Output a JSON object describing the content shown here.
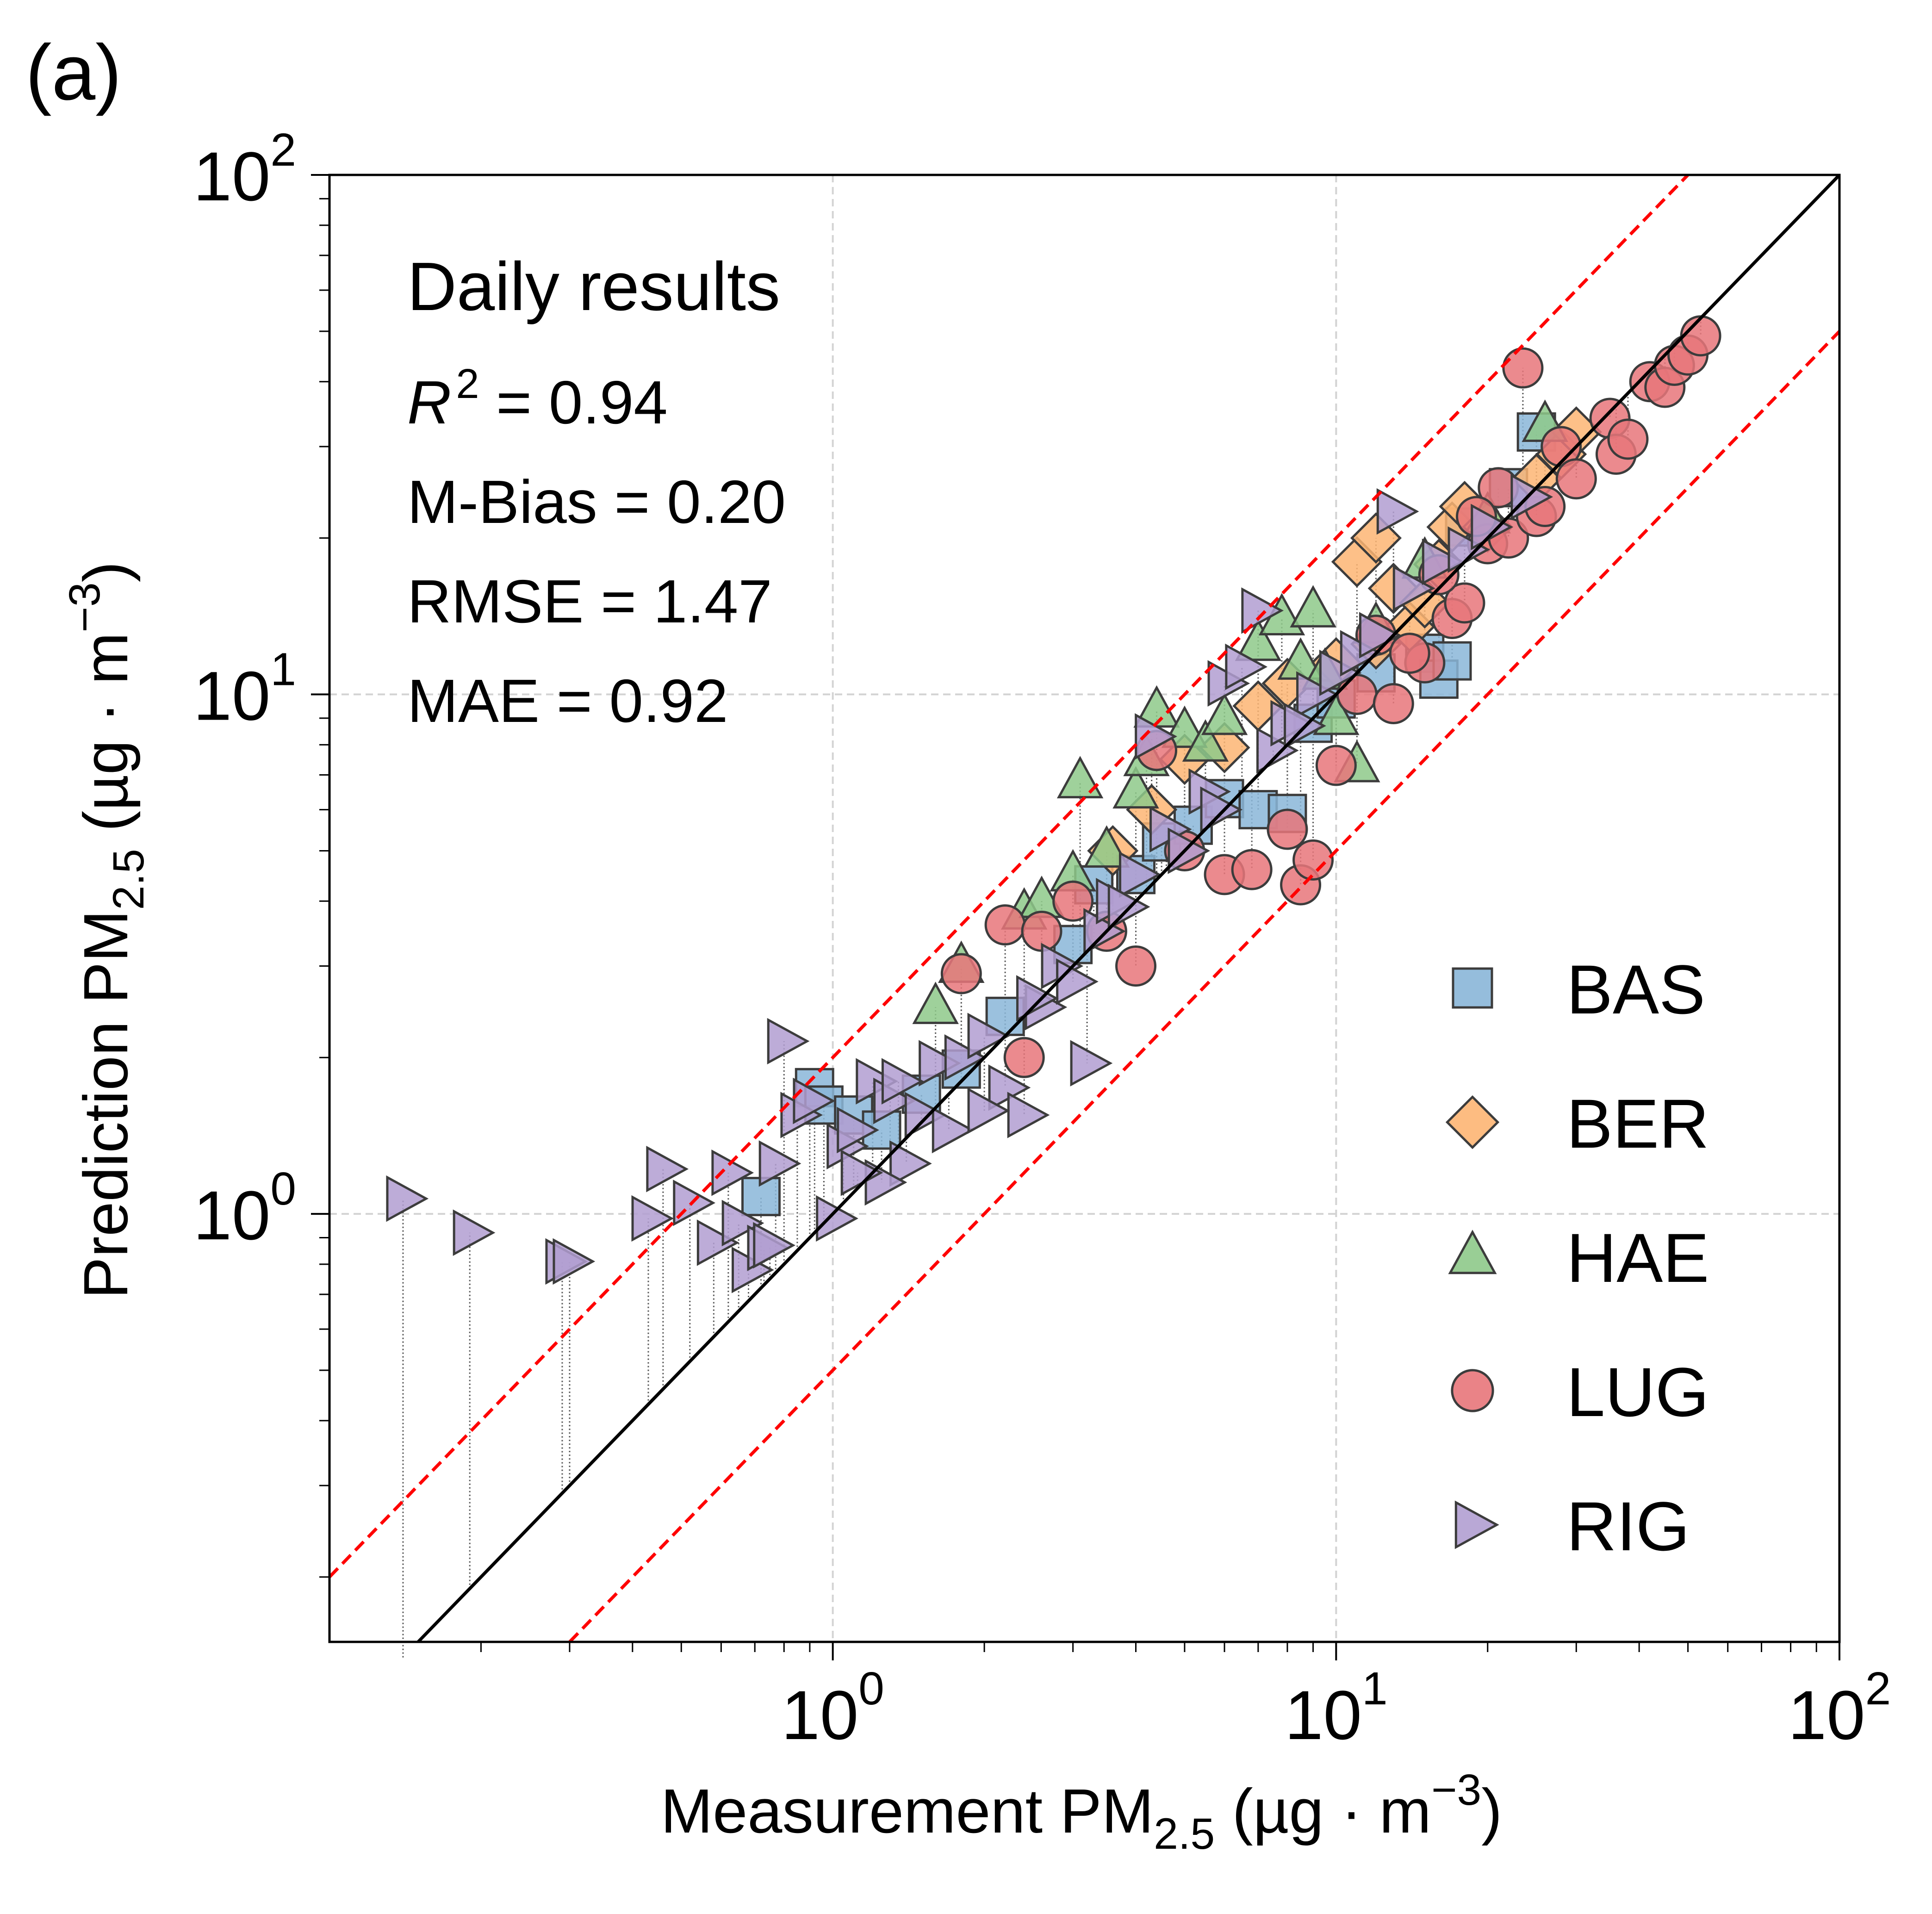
{
  "chart_data": {
    "type": "scatter",
    "panel_label": "(a)",
    "xlabel": "Measurement PM2.5 (µg · m−3)",
    "ylabel": "Prediction PM2.5 (µg · m−3)",
    "xlabel_parts": {
      "pre": "Measurement PM",
      "sub": "2.5",
      "mid": " (µg · m",
      "sup": "−3",
      "post": ")"
    },
    "ylabel_parts": {
      "pre": "Prediction PM",
      "sub": "2.5",
      "mid": " (µg · m",
      "sup": "−3",
      "post": ")"
    },
    "x_scale": "log",
    "y_scale": "log",
    "xlim": [
      0.1,
      100
    ],
    "ylim": [
      0.15,
      100
    ],
    "x_ticks": [
      {
        "value": 1,
        "base": "10",
        "exp": "0"
      },
      {
        "value": 10,
        "base": "10",
        "exp": "1"
      },
      {
        "value": 100,
        "base": "10",
        "exp": "2"
      }
    ],
    "y_ticks": [
      {
        "value": 1,
        "base": "10",
        "exp": "0"
      },
      {
        "value": 10,
        "base": "10",
        "exp": "1"
      },
      {
        "value": 100,
        "base": "10",
        "exp": "2"
      }
    ],
    "grid": true,
    "legend_position": "lower-right",
    "annotations": {
      "title": "Daily results",
      "r2_label": "R",
      "r2_sup": "2",
      "r2_value": " = 0.94",
      "mbias": "M-Bias = 0.20",
      "rmse": "RMSE = 1.47",
      "mae": "MAE = 0.92"
    },
    "reference_lines": [
      {
        "kind": "identity",
        "factor": 1,
        "color": "#000000",
        "style": "solid"
      },
      {
        "kind": "upper",
        "factor": 2,
        "color": "#ff0000",
        "style": "dashed"
      },
      {
        "kind": "lower",
        "factor": 0.5,
        "color": "#ff0000",
        "style": "dashed"
      }
    ],
    "series": [
      {
        "name": "BAS",
        "marker": "square",
        "color": "#89b6d8",
        "points": [
          [
            0.92,
            1.75
          ],
          [
            0.96,
            1.62
          ],
          [
            1.1,
            1.55
          ],
          [
            1.25,
            1.45
          ],
          [
            1.5,
            1.7
          ],
          [
            1.8,
            1.9
          ],
          [
            2.2,
            2.4
          ],
          [
            3.0,
            3.3
          ],
          [
            3.3,
            4.3
          ],
          [
            4.0,
            4.5
          ],
          [
            4.5,
            5.2
          ],
          [
            5.2,
            5.6
          ],
          [
            6.0,
            6.3
          ],
          [
            7.0,
            6.0
          ],
          [
            8.0,
            5.9
          ],
          [
            9.0,
            8.8
          ],
          [
            10.0,
            9.8
          ],
          [
            12.0,
            11.0
          ],
          [
            15.0,
            12.0
          ],
          [
            16.0,
            10.7
          ],
          [
            17.0,
            11.6
          ],
          [
            18.0,
            21.0
          ],
          [
            22.0,
            25.0
          ],
          [
            25.0,
            32.0
          ],
          [
            0.72,
            1.08
          ]
        ]
      },
      {
        "name": "BER",
        "marker": "diamond",
        "color": "#fdb573",
        "points": [
          [
            5.0,
            7.5
          ],
          [
            6.0,
            7.9
          ],
          [
            7.0,
            9.5
          ],
          [
            8.0,
            10.5
          ],
          [
            10.0,
            11.5
          ],
          [
            12.0,
            12.5
          ],
          [
            13.0,
            16.0
          ],
          [
            14.0,
            13.5
          ],
          [
            15.0,
            15.0
          ],
          [
            16.0,
            17.8
          ],
          [
            17.0,
            21.0
          ],
          [
            18.0,
            23.0
          ],
          [
            20.0,
            21.0
          ],
          [
            25.0,
            26.0
          ],
          [
            28.0,
            29.0
          ],
          [
            30.0,
            32.0
          ],
          [
            11.0,
            18.0
          ],
          [
            12.0,
            20.0
          ],
          [
            4.3,
            6.0
          ],
          [
            3.6,
            5.0
          ]
        ]
      },
      {
        "name": "HAE",
        "marker": "triangle",
        "color": "#8ec98a",
        "points": [
          [
            1.6,
            2.5
          ],
          [
            1.8,
            3.0
          ],
          [
            2.4,
            3.8
          ],
          [
            2.6,
            4.0
          ],
          [
            3.0,
            4.5
          ],
          [
            3.1,
            6.8
          ],
          [
            3.5,
            5.0
          ],
          [
            4.0,
            6.5
          ],
          [
            4.2,
            7.5
          ],
          [
            4.4,
            9.3
          ],
          [
            5.0,
            8.5
          ],
          [
            5.5,
            8.0
          ],
          [
            6.0,
            9.0
          ],
          [
            7.0,
            12.5
          ],
          [
            7.8,
            14.0
          ],
          [
            8.5,
            11.5
          ],
          [
            9.0,
            14.5
          ],
          [
            9.5,
            11.0
          ],
          [
            10.0,
            9.0
          ],
          [
            11.0,
            7.3
          ],
          [
            12.0,
            13.5
          ],
          [
            15.0,
            18.0
          ],
          [
            20.0,
            22.0
          ],
          [
            26.0,
            33.0
          ]
        ]
      },
      {
        "name": "LUG",
        "marker": "circle",
        "color": "#e8767a",
        "points": [
          [
            1.8,
            2.9
          ],
          [
            2.2,
            3.6
          ],
          [
            2.4,
            2.0
          ],
          [
            2.6,
            3.5
          ],
          [
            3.0,
            4.0
          ],
          [
            3.5,
            3.5
          ],
          [
            4.0,
            3.0
          ],
          [
            4.4,
            7.8
          ],
          [
            5.0,
            5.0
          ],
          [
            6.0,
            4.5
          ],
          [
            6.8,
            4.6
          ],
          [
            8.0,
            5.5
          ],
          [
            8.5,
            4.3
          ],
          [
            9.0,
            4.8
          ],
          [
            10.0,
            7.3
          ],
          [
            11.0,
            10.0
          ],
          [
            12.0,
            13.0
          ],
          [
            13.0,
            9.6
          ],
          [
            15.0,
            11.5
          ],
          [
            17.0,
            14.0
          ],
          [
            18.0,
            15.0
          ],
          [
            20.0,
            19.5
          ],
          [
            21.0,
            25.0
          ],
          [
            22.0,
            20.0
          ],
          [
            23.5,
            42.5
          ],
          [
            25.0,
            22.0
          ],
          [
            26.0,
            23.0
          ],
          [
            28.0,
            30.0
          ],
          [
            30.0,
            26.0
          ],
          [
            35.0,
            34.0
          ],
          [
            36.0,
            29.0
          ],
          [
            38.0,
            31.0
          ],
          [
            42.0,
            40.0
          ],
          [
            45.0,
            39.0
          ],
          [
            47.0,
            43.0
          ],
          [
            50.0,
            45.0
          ],
          [
            53.0,
            49.0
          ],
          [
            16.0,
            17.0
          ],
          [
            14.0,
            12.0
          ],
          [
            19.0,
            22.0
          ]
        ]
      },
      {
        "name": "RIG",
        "marker": "triangle-right",
        "color": "#b19ed1",
        "points": [
          [
            0.14,
            1.07
          ],
          [
            0.19,
            0.92
          ],
          [
            0.29,
            0.81
          ],
          [
            0.3,
            0.81
          ],
          [
            0.43,
            0.98
          ],
          [
            0.46,
            1.22
          ],
          [
            0.52,
            1.05
          ],
          [
            0.58,
            0.88
          ],
          [
            0.62,
            1.2
          ],
          [
            0.65,
            0.96
          ],
          [
            0.68,
            0.78
          ],
          [
            0.73,
            0.86
          ],
          [
            0.77,
            1.25
          ],
          [
            0.8,
            2.15
          ],
          [
            0.85,
            1.55
          ],
          [
            0.9,
            1.65
          ],
          [
            1.0,
            0.98
          ],
          [
            1.05,
            1.35
          ],
          [
            1.1,
            1.45
          ],
          [
            1.2,
            1.8
          ],
          [
            1.3,
            1.65
          ],
          [
            1.4,
            1.25
          ],
          [
            1.5,
            1.55
          ],
          [
            1.6,
            1.95
          ],
          [
            1.7,
            1.45
          ],
          [
            1.8,
            2.0
          ],
          [
            2.0,
            2.2
          ],
          [
            2.2,
            1.75
          ],
          [
            2.4,
            1.55
          ],
          [
            2.6,
            2.5
          ],
          [
            2.8,
            3.0
          ],
          [
            3.0,
            2.8
          ],
          [
            3.2,
            1.95
          ],
          [
            3.4,
            3.5
          ],
          [
            3.6,
            4.0
          ],
          [
            4.0,
            4.5
          ],
          [
            4.3,
            8.3
          ],
          [
            4.6,
            5.5
          ],
          [
            5.0,
            5.0
          ],
          [
            5.5,
            6.5
          ],
          [
            6.0,
            10.5
          ],
          [
            6.5,
            11.3
          ],
          [
            7.0,
            14.5
          ],
          [
            7.5,
            7.8
          ],
          [
            8.0,
            8.8
          ],
          [
            9.0,
            10.0
          ],
          [
            10.0,
            11.0
          ],
          [
            11.0,
            12.0
          ],
          [
            12.0,
            13.0
          ],
          [
            13.0,
            22.5
          ],
          [
            14.0,
            16.0
          ],
          [
            16.0,
            18.0
          ],
          [
            18.0,
            19.0
          ],
          [
            20.0,
            21.0
          ],
          [
            24.0,
            24.0
          ],
          [
            0.75,
            0.87
          ],
          [
            1.25,
            1.15
          ],
          [
            2.0,
            1.58
          ],
          [
            1.12,
            1.2
          ],
          [
            1.35,
            1.8
          ],
          [
            2.5,
            2.6
          ],
          [
            3.8,
            3.9
          ],
          [
            5.8,
            6.0
          ],
          [
            8.5,
            8.7
          ]
        ]
      }
    ]
  }
}
